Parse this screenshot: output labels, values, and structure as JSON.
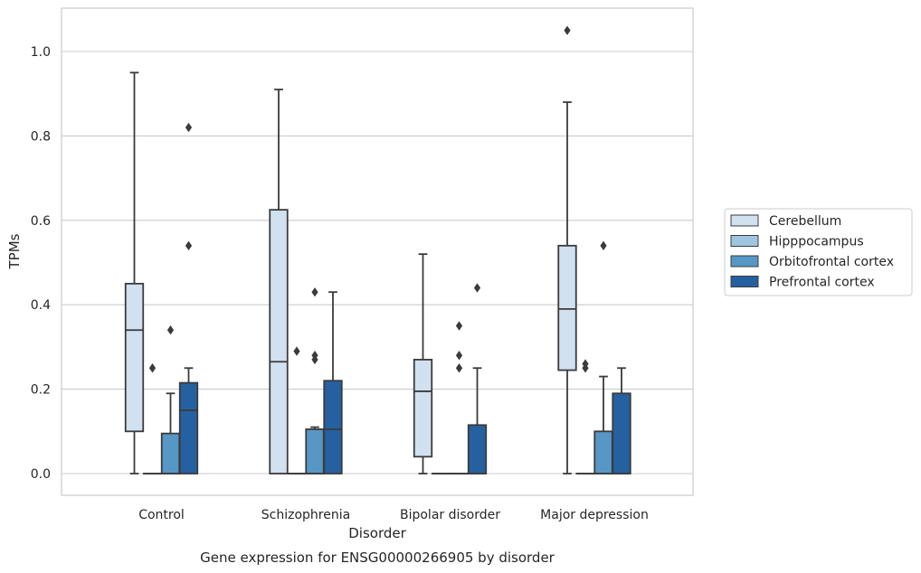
{
  "chart_data": {
    "type": "boxplot",
    "xlabel": "Disorder",
    "ylabel": "TPMs",
    "caption": "Gene expression for ENSG00000266905 by disorder",
    "ylim": [
      -0.05,
      1.1
    ],
    "yticks": [
      "0.0",
      "0.2",
      "0.4",
      "0.6",
      "0.8",
      "1.0"
    ],
    "grid": "horizontal",
    "legend_position": "right",
    "categories": [
      "Control",
      "Schizophrenia",
      "Bipolar disorder",
      "Major depression"
    ],
    "series": [
      {
        "name": "Cerebellum",
        "color": "#d1e1ef",
        "boxes": [
          {
            "min": 0.0,
            "q1": 0.1,
            "median": 0.34,
            "q3": 0.45,
            "max": 0.95,
            "outliers": []
          },
          {
            "min": 0.0,
            "q1": 0.0,
            "median": 0.265,
            "q3": 0.625,
            "max": 0.91,
            "outliers": []
          },
          {
            "min": 0.0,
            "q1": 0.04,
            "median": 0.195,
            "q3": 0.27,
            "max": 0.52,
            "outliers": []
          },
          {
            "min": 0.0,
            "q1": 0.245,
            "median": 0.39,
            "q3": 0.54,
            "max": 0.88,
            "outliers": [
              1.05
            ]
          }
        ]
      },
      {
        "name": "Hipppocampus",
        "color": "#9fc5df",
        "boxes": [
          {
            "min": 0.0,
            "q1": 0.0,
            "median": 0.0,
            "q3": 0.0,
            "max": 0.0,
            "outliers": [
              0.25
            ]
          },
          {
            "min": 0.0,
            "q1": 0.0,
            "median": 0.0,
            "q3": 0.0,
            "max": 0.0,
            "outliers": [
              0.29
            ]
          },
          {
            "min": 0.0,
            "q1": 0.0,
            "median": 0.0,
            "q3": 0.0,
            "max": 0.0,
            "outliers": []
          },
          {
            "min": 0.0,
            "q1": 0.0,
            "median": 0.0,
            "q3": 0.0,
            "max": 0.0,
            "outliers": [
              0.25,
              0.26
            ]
          }
        ]
      },
      {
        "name": "Orbitofrontal cortex",
        "color": "#5697c6",
        "boxes": [
          {
            "min": 0.0,
            "q1": 0.0,
            "median": 0.0,
            "q3": 0.095,
            "max": 0.19,
            "outliers": [
              0.34
            ]
          },
          {
            "min": 0.0,
            "q1": 0.0,
            "median": 0.0,
            "q3": 0.105,
            "max": 0.11,
            "outliers": [
              0.27,
              0.28,
              0.43
            ]
          },
          {
            "min": 0.0,
            "q1": 0.0,
            "median": 0.0,
            "q3": 0.0,
            "max": 0.0,
            "outliers": [
              0.25,
              0.28,
              0.35
            ]
          },
          {
            "min": 0.0,
            "q1": 0.0,
            "median": 0.0,
            "q3": 0.1,
            "max": 0.23,
            "outliers": [
              0.54
            ]
          }
        ]
      },
      {
        "name": "Prefrontal cortex",
        "color": "#2561a1",
        "boxes": [
          {
            "min": 0.0,
            "q1": 0.0,
            "median": 0.15,
            "q3": 0.215,
            "max": 0.25,
            "outliers": [
              0.54,
              0.82
            ]
          },
          {
            "min": 0.0,
            "q1": 0.0,
            "median": 0.105,
            "q3": 0.22,
            "max": 0.43,
            "outliers": []
          },
          {
            "min": 0.0,
            "q1": 0.0,
            "median": 0.0,
            "q3": 0.115,
            "max": 0.25,
            "outliers": [
              0.44
            ]
          },
          {
            "min": 0.0,
            "q1": 0.0,
            "median": 0.0,
            "q3": 0.19,
            "max": 0.25,
            "outliers": []
          }
        ]
      }
    ]
  }
}
